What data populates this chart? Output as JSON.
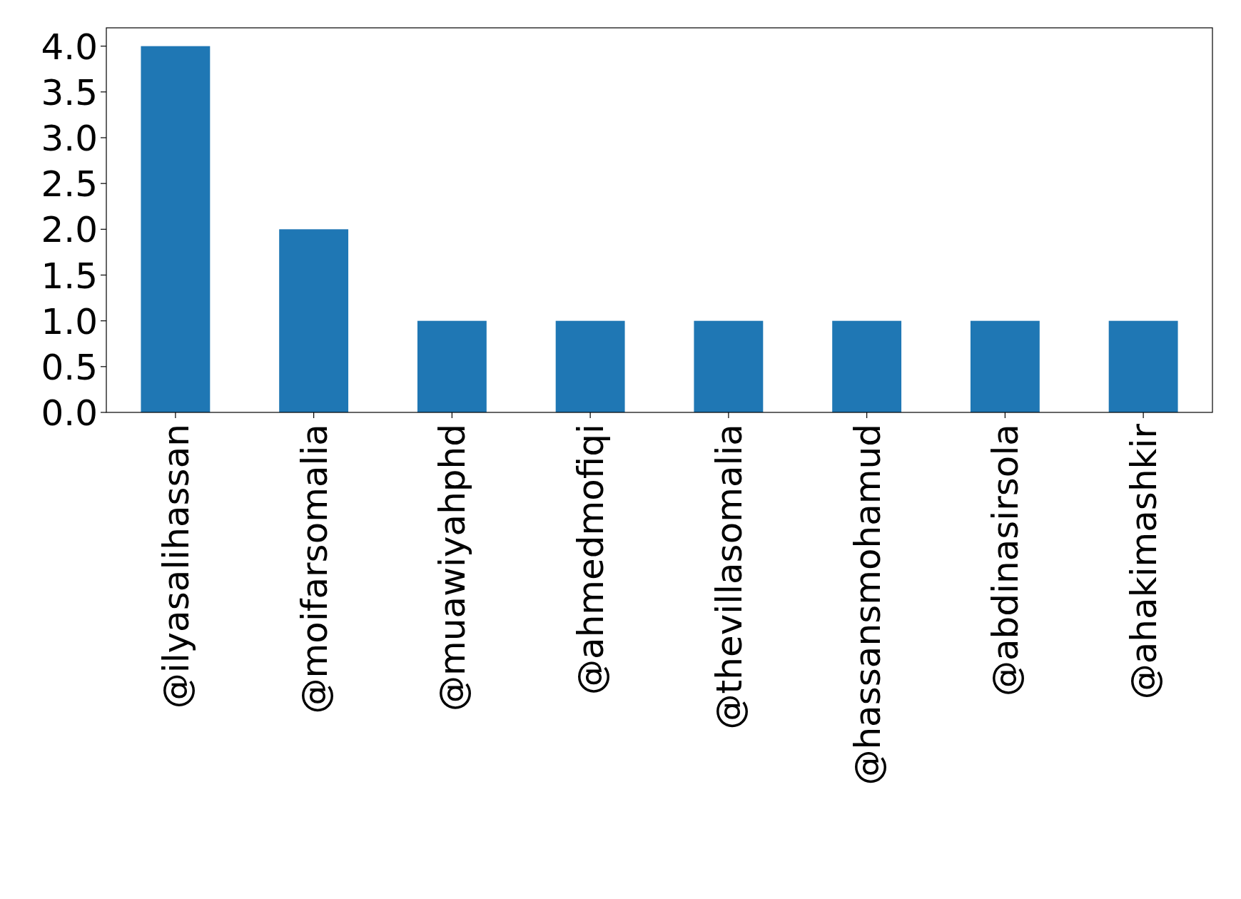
{
  "chart_data": {
    "type": "bar",
    "categories": [
      "@ilyasalihassan",
      "@moifarsomalia",
      "@muawiyahphd",
      "@ahmedmofiqi",
      "@thevillasomalia",
      "@hassansmohamud",
      "@abdinasirsola",
      "@ahakimashkir"
    ],
    "values": [
      4,
      2,
      1,
      1,
      1,
      1,
      1,
      1
    ],
    "color": "#1f77b4",
    "ylim": [
      0,
      4.2
    ],
    "yticks": [
      {
        "value": 0,
        "label": "0.0"
      },
      {
        "value": 0.5,
        "label": "0.5"
      },
      {
        "value": 1,
        "label": "1.0"
      },
      {
        "value": 1.5,
        "label": "1.5"
      },
      {
        "value": 2,
        "label": "2.0"
      },
      {
        "value": 2.5,
        "label": "2.5"
      },
      {
        "value": 3,
        "label": "3.0"
      },
      {
        "value": 3.5,
        "label": "3.5"
      },
      {
        "value": 4,
        "label": "4.0"
      }
    ],
    "grid": false
  }
}
